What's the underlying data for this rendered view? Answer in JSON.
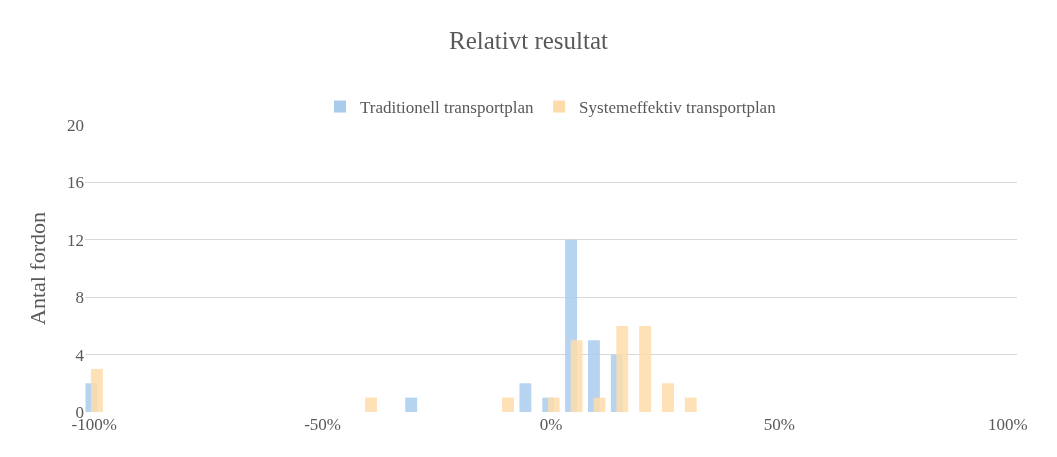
{
  "chart_data": {
    "type": "bar",
    "title": "Relativt resultat",
    "ylabel": "Antal fordon",
    "series": [
      {
        "name": "Traditionell transportplan",
        "color": "#a9cbec",
        "x": [
          -100,
          -30,
          -5,
          0,
          5,
          10,
          15
        ],
        "values": [
          2,
          1,
          2,
          1,
          12,
          5,
          4
        ]
      },
      {
        "name": "Systemeffektiv transportplan",
        "color": "#fedcaa",
        "x": [
          -100,
          -40,
          -10,
          0,
          5,
          10,
          15,
          20,
          25,
          30
        ],
        "values": [
          3,
          1,
          1,
          1,
          5,
          1,
          6,
          6,
          2,
          1
        ]
      }
    ],
    "xlim": [
      -102,
      102
    ],
    "xticks": [
      {
        "value": -100,
        "label": "-100%"
      },
      {
        "value": -50,
        "label": "-50%"
      },
      {
        "value": 0,
        "label": "0%"
      },
      {
        "value": 50,
        "label": "50%"
      },
      {
        "value": 100,
        "label": "100%"
      }
    ],
    "ylim": [
      0,
      20
    ],
    "yticks": [
      0,
      4,
      8,
      12,
      16,
      20
    ],
    "grid": "y",
    "legend": "top"
  }
}
